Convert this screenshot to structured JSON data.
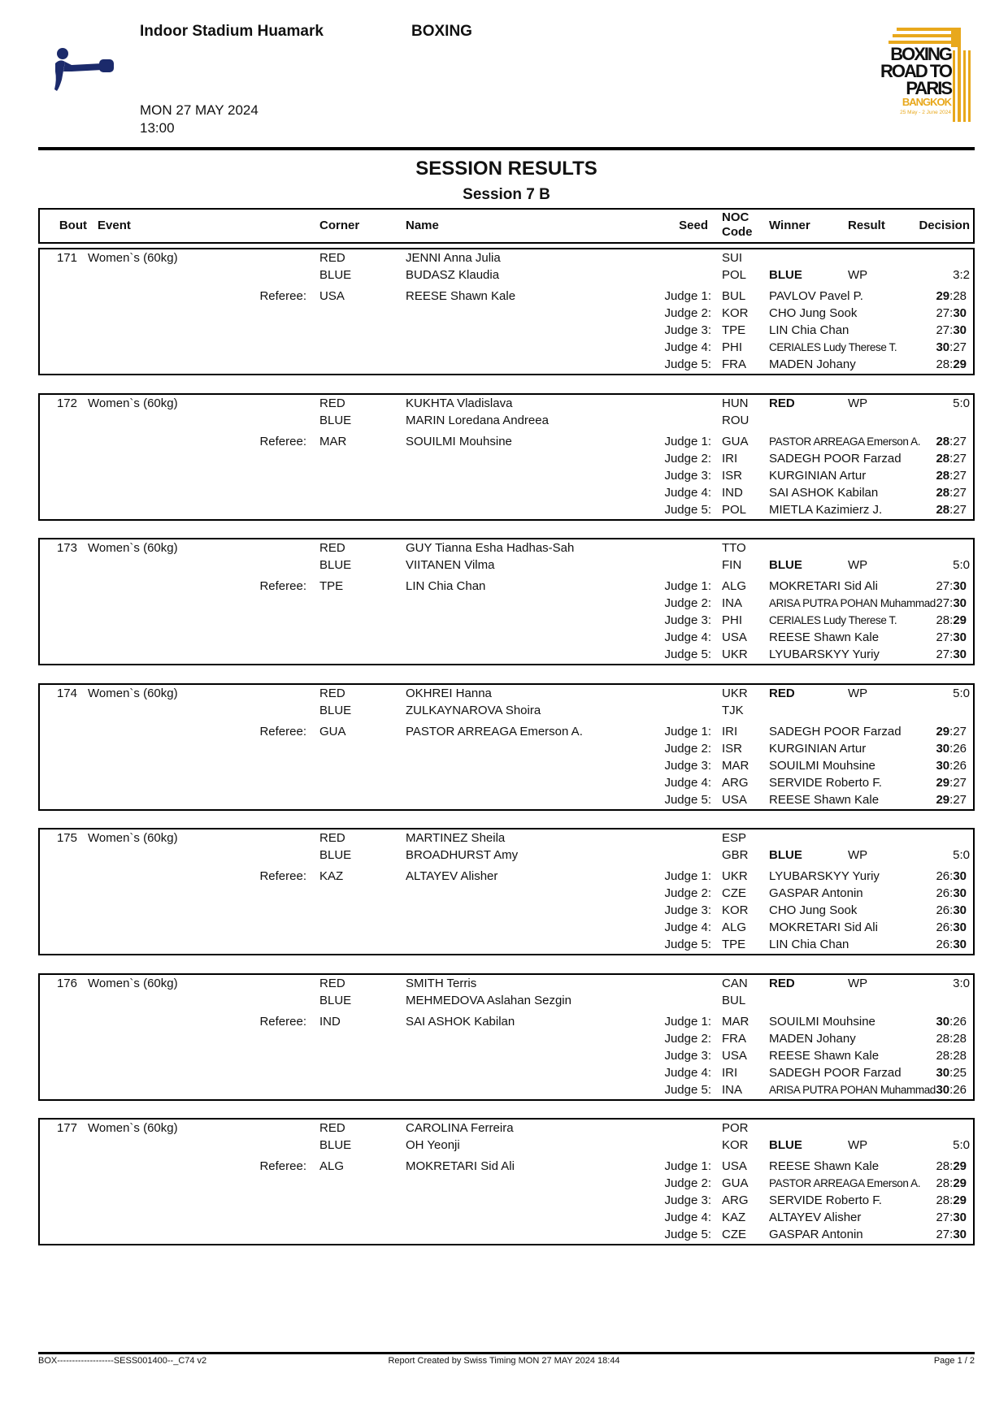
{
  "header": {
    "venue": "Indoor Stadium Huamark",
    "sport": "BOXING",
    "date": "MON 27 MAY 2024",
    "time": "13:00",
    "sport_icon": "boxing-pictogram-icon",
    "logo": {
      "lines": [
        "BOXING",
        "ROAD TO",
        "PARIS"
      ],
      "city": "BANGKOK",
      "dates": "25 May - 2 June 2024",
      "accent": "#E8A81C",
      "icon_color": "#1B2A6B"
    }
  },
  "title": "SESSION RESULTS",
  "subtitle": "Session 7 B",
  "columns": {
    "bout": "Bout",
    "event": "Event",
    "corner": "Corner",
    "name": "Name",
    "seed": "Seed",
    "noc1": "NOC",
    "noc2": "Code",
    "winner": "Winner",
    "result": "Result",
    "decision": "Decision"
  },
  "labels": {
    "referee": "Referee:",
    "judge_prefix": "Judge"
  },
  "bouts": [
    {
      "bout": "171",
      "event": "Women`s (60kg)",
      "red": {
        "corner": "RED",
        "name": "JENNI Anna Julia",
        "noc": "SUI"
      },
      "blue": {
        "corner": "BLUE",
        "name": "BUDASZ Klaudia",
        "noc": "POL"
      },
      "winner": "BLUE",
      "result": "WP",
      "decision": "3:2",
      "referee": {
        "noc": "USA",
        "name": "REESE Shawn Kale"
      },
      "judges": [
        {
          "label": "Judge 1:",
          "noc": "BUL",
          "name": "PAVLOV Pavel P.",
          "red": 29,
          "blue": 28
        },
        {
          "label": "Judge 2:",
          "noc": "KOR",
          "name": "CHO Jung Sook",
          "red": 27,
          "blue": 30
        },
        {
          "label": "Judge 3:",
          "noc": "TPE",
          "name": "LIN Chia Chan",
          "red": 27,
          "blue": 30
        },
        {
          "label": "Judge 4:",
          "noc": "PHI",
          "name": "CERIALES Ludy Therese T.",
          "red": 30,
          "blue": 27
        },
        {
          "label": "Judge 5:",
          "noc": "FRA",
          "name": "MADEN Johany",
          "red": 28,
          "blue": 29
        }
      ]
    },
    {
      "bout": "172",
      "event": "Women`s (60kg)",
      "red": {
        "corner": "RED",
        "name": "KUKHTA Vladislava",
        "noc": "HUN"
      },
      "blue": {
        "corner": "BLUE",
        "name": "MARIN Loredana Andreea",
        "noc": "ROU"
      },
      "winner": "RED",
      "result": "WP",
      "decision": "5:0",
      "referee": {
        "noc": "MAR",
        "name": "SOUILMI Mouhsine"
      },
      "judges": [
        {
          "label": "Judge 1:",
          "noc": "GUA",
          "name": "PASTOR ARREAGA Emerson A.",
          "red": 28,
          "blue": 27
        },
        {
          "label": "Judge 2:",
          "noc": "IRI",
          "name": "SADEGH POOR Farzad",
          "red": 28,
          "blue": 27
        },
        {
          "label": "Judge 3:",
          "noc": "ISR",
          "name": "KURGINIAN Artur",
          "red": 28,
          "blue": 27
        },
        {
          "label": "Judge 4:",
          "noc": "IND",
          "name": "SAI ASHOK Kabilan",
          "red": 28,
          "blue": 27
        },
        {
          "label": "Judge 5:",
          "noc": "POL",
          "name": "MIETLA Kazimierz J.",
          "red": 28,
          "blue": 27
        }
      ]
    },
    {
      "bout": "173",
      "event": "Women`s (60kg)",
      "red": {
        "corner": "RED",
        "name": "GUY Tianna Esha Hadhas-Sah",
        "noc": "TTO"
      },
      "blue": {
        "corner": "BLUE",
        "name": "VIITANEN Vilma",
        "noc": "FIN"
      },
      "winner": "BLUE",
      "result": "WP",
      "decision": "5:0",
      "referee": {
        "noc": "TPE",
        "name": "LIN Chia Chan"
      },
      "judges": [
        {
          "label": "Judge 1:",
          "noc": "ALG",
          "name": "MOKRETARI Sid Ali",
          "red": 27,
          "blue": 30
        },
        {
          "label": "Judge 2:",
          "noc": "INA",
          "name": "ARISA PUTRA POHAN Muhammad",
          "red": 27,
          "blue": 30
        },
        {
          "label": "Judge 3:",
          "noc": "PHI",
          "name": "CERIALES Ludy Therese T.",
          "red": 28,
          "blue": 29
        },
        {
          "label": "Judge 4:",
          "noc": "USA",
          "name": "REESE Shawn Kale",
          "red": 27,
          "blue": 30
        },
        {
          "label": "Judge 5:",
          "noc": "UKR",
          "name": "LYUBARSKYY Yuriy",
          "red": 27,
          "blue": 30
        }
      ]
    },
    {
      "bout": "174",
      "event": "Women`s (60kg)",
      "red": {
        "corner": "RED",
        "name": "OKHREI Hanna",
        "noc": "UKR"
      },
      "blue": {
        "corner": "BLUE",
        "name": "ZULKAYNAROVA Shoira",
        "noc": "TJK"
      },
      "winner": "RED",
      "result": "WP",
      "decision": "5:0",
      "referee": {
        "noc": "GUA",
        "name": "PASTOR ARREAGA Emerson A."
      },
      "judges": [
        {
          "label": "Judge 1:",
          "noc": "IRI",
          "name": "SADEGH POOR Farzad",
          "red": 29,
          "blue": 27
        },
        {
          "label": "Judge 2:",
          "noc": "ISR",
          "name": "KURGINIAN Artur",
          "red": 30,
          "blue": 26
        },
        {
          "label": "Judge 3:",
          "noc": "MAR",
          "name": "SOUILMI Mouhsine",
          "red": 30,
          "blue": 26
        },
        {
          "label": "Judge 4:",
          "noc": "ARG",
          "name": "SERVIDE Roberto F.",
          "red": 29,
          "blue": 27
        },
        {
          "label": "Judge 5:",
          "noc": "USA",
          "name": "REESE Shawn Kale",
          "red": 29,
          "blue": 27
        }
      ]
    },
    {
      "bout": "175",
      "event": "Women`s (60kg)",
      "red": {
        "corner": "RED",
        "name": "MARTINEZ Sheila",
        "noc": "ESP"
      },
      "blue": {
        "corner": "BLUE",
        "name": "BROADHURST Amy",
        "noc": "GBR"
      },
      "winner": "BLUE",
      "result": "WP",
      "decision": "5:0",
      "referee": {
        "noc": "KAZ",
        "name": "ALTAYEV Alisher"
      },
      "judges": [
        {
          "label": "Judge 1:",
          "noc": "UKR",
          "name": "LYUBARSKYY Yuriy",
          "red": 26,
          "blue": 30
        },
        {
          "label": "Judge 2:",
          "noc": "CZE",
          "name": "GASPAR Antonin",
          "red": 26,
          "blue": 30
        },
        {
          "label": "Judge 3:",
          "noc": "KOR",
          "name": "CHO Jung Sook",
          "red": 26,
          "blue": 30
        },
        {
          "label": "Judge 4:",
          "noc": "ALG",
          "name": "MOKRETARI Sid Ali",
          "red": 26,
          "blue": 30
        },
        {
          "label": "Judge 5:",
          "noc": "TPE",
          "name": "LIN Chia Chan",
          "red": 26,
          "blue": 30
        }
      ]
    },
    {
      "bout": "176",
      "event": "Women`s (60kg)",
      "red": {
        "corner": "RED",
        "name": "SMITH Terris",
        "noc": "CAN"
      },
      "blue": {
        "corner": "BLUE",
        "name": "MEHMEDOVA Aslahan Sezgin",
        "noc": "BUL"
      },
      "winner": "RED",
      "result": "WP",
      "decision": "3:0",
      "referee": {
        "noc": "IND",
        "name": "SAI ASHOK Kabilan"
      },
      "judges": [
        {
          "label": "Judge 1:",
          "noc": "MAR",
          "name": "SOUILMI Mouhsine",
          "red": 30,
          "blue": 26
        },
        {
          "label": "Judge 2:",
          "noc": "FRA",
          "name": "MADEN Johany",
          "red": 28,
          "blue": 28
        },
        {
          "label": "Judge 3:",
          "noc": "USA",
          "name": "REESE Shawn Kale",
          "red": 28,
          "blue": 28
        },
        {
          "label": "Judge 4:",
          "noc": "IRI",
          "name": "SADEGH POOR Farzad",
          "red": 30,
          "blue": 25
        },
        {
          "label": "Judge 5:",
          "noc": "INA",
          "name": "ARISA PUTRA POHAN Muhammad",
          "red": 30,
          "blue": 26
        }
      ]
    },
    {
      "bout": "177",
      "event": "Women`s (60kg)",
      "red": {
        "corner": "RED",
        "name": "CAROLINA Ferreira",
        "noc": "POR"
      },
      "blue": {
        "corner": "BLUE",
        "name": "OH Yeonji",
        "noc": "KOR"
      },
      "winner": "BLUE",
      "result": "WP",
      "decision": "5:0",
      "referee": {
        "noc": "ALG",
        "name": "MOKRETARI Sid Ali"
      },
      "judges": [
        {
          "label": "Judge 1:",
          "noc": "USA",
          "name": "REESE Shawn Kale",
          "red": 28,
          "blue": 29
        },
        {
          "label": "Judge 2:",
          "noc": "GUA",
          "name": "PASTOR ARREAGA Emerson A.",
          "red": 28,
          "blue": 29
        },
        {
          "label": "Judge 3:",
          "noc": "ARG",
          "name": "SERVIDE Roberto F.",
          "red": 28,
          "blue": 29
        },
        {
          "label": "Judge 4:",
          "noc": "KAZ",
          "name": "ALTAYEV Alisher",
          "red": 27,
          "blue": 30
        },
        {
          "label": "Judge 5:",
          "noc": "CZE",
          "name": "GASPAR Antonin",
          "red": 27,
          "blue": 30
        }
      ]
    }
  ],
  "footer": {
    "code": "BOX-------------------SESS001400--_C74 v2",
    "created": "Report Created by Swiss Timing  MON 27 MAY 2024 18:44",
    "page": "Page 1 / 2"
  }
}
